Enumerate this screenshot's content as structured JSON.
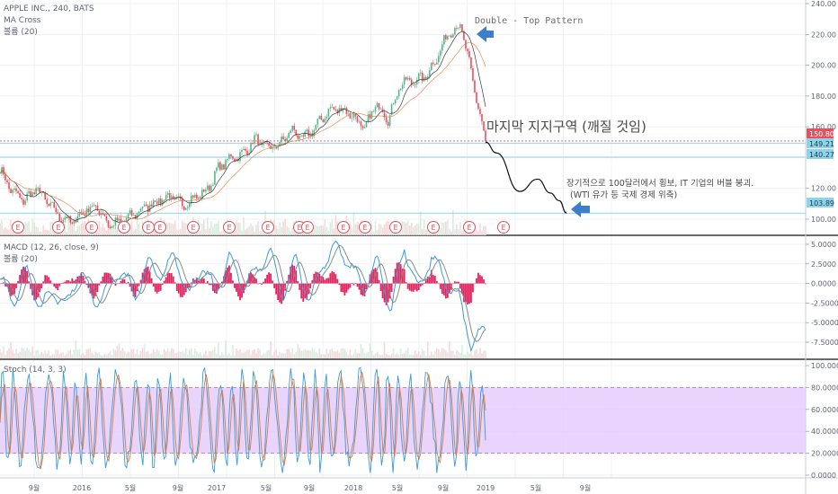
{
  "panel1": {
    "title": "APPLE INC., 240, BATS",
    "indicator1": "MA Cross",
    "indicator2": "볼륨 (20)",
    "y_ticks": [
      "240.00",
      "220.00",
      "200.00",
      "180.00",
      "160.00",
      "120.00",
      "100.00"
    ],
    "price_tags": [
      {
        "text": "150.80",
        "value": 150.8,
        "color": "#e05260",
        "text_color": "#ffffff"
      },
      {
        "text": "149.21",
        "value": 149.21,
        "color": "#8fd3e8",
        "text_color": "#1a3a4a"
      },
      {
        "text": "140.27",
        "value": 140.27,
        "color": "#8fd3e8",
        "text_color": "#1a3a4a"
      },
      {
        "text": "103.89",
        "value": 103.89,
        "color": "#8fd3e8",
        "text_color": "#1a3a4a"
      }
    ],
    "earnings_marker": "E",
    "annotation_top": "Double - Top Pattern",
    "annotation_support": "마지막 지지구역 (깨질 것임)",
    "annotation_note_line1": "장기적으로 100달러에서 횡보, IT 기업의 버블 붕괴.",
    "annotation_note_line2": "(WTI 유가 등 국제 경제 위축)"
  },
  "panel2": {
    "title": "MACD (12, 26, close, 9)",
    "indicator": "볼륨 (20)",
    "y_ticks": [
      "5.0000",
      "2.5000",
      "0.0000",
      "-2.5000",
      "-5.0000",
      "-7.5000"
    ]
  },
  "panel3": {
    "title": "Stoch (14, 3, 3)",
    "y_ticks": [
      "100.0000",
      "80.0000",
      "60.0000",
      "40.0000",
      "20.0000",
      "0.0000"
    ]
  },
  "x_axis": {
    "ticks": [
      "9월",
      "2016",
      "5월",
      "9월",
      "2017",
      "5월",
      "9월",
      "2018",
      "5월",
      "9월",
      "2019",
      "5월",
      "9월"
    ]
  },
  "colors": {
    "up": "#53b987",
    "down": "#eb4d5c",
    "price_line": "#1f2633",
    "macd_line": "#3a9bd9",
    "signal_line": "#8a8a8a",
    "hist": "#e0245e",
    "stoch_k": "#3a9bd9",
    "stoch_d": "#e07a3a",
    "stoch_band": "#e4cdfc",
    "arrow": "#3d7dca",
    "support_line": "#e05260",
    "level_line": "#8fd3e8"
  },
  "chart_data": [
    {
      "type": "line",
      "title": "APPLE INC., 240, BATS",
      "ylim": [
        95,
        242
      ],
      "series": [
        {
          "name": "",
          "x": [
            "2015-08",
            "2015-09",
            "2015-10",
            "2015-11",
            "2015-12",
            "2016-01",
            "2016-02",
            "2016-03",
            "2016-04",
            "2016-05",
            "2016-06",
            "2016-07",
            "2016-08",
            "2016-09",
            "2016-10",
            "2016-11",
            "2016-12",
            "2017-01",
            "2017-02",
            "2017-03",
            "2017-04",
            "2017-05",
            "2017-06",
            "2017-07",
            "2017-08",
            "2017-09",
            "2017-10",
            "2017-11",
            "2017-12",
            "2018-01",
            "2018-02",
            "2018-03",
            "2018-04",
            "2018-05",
            "2018-06",
            "2018-07",
            "2018-08",
            "2018-09",
            "2018-10",
            "2018-11",
            "2018-12"
          ],
          "values": [
            132,
            118,
            112,
            120,
            110,
            101,
            98,
            106,
            108,
            96,
            98,
            103,
            108,
            112,
            115,
            109,
            114,
            118,
            133,
            140,
            142,
            152,
            146,
            148,
            158,
            152,
            160,
            170,
            172,
            168,
            158,
            175,
            165,
            188,
            190,
            192,
            205,
            222,
            225,
            188,
            150
          ]
        }
      ],
      "projection": {
        "x": [
          "2018-12",
          "2019-01",
          "2019-02",
          "2019-03",
          "2019-04",
          "2019-05",
          "2019-06"
        ],
        "values": [
          150,
          143,
          118,
          126,
          117,
          112,
          104
        ]
      },
      "levels": [
        150.8,
        149.21,
        140.27,
        103.89
      ]
    },
    {
      "type": "line",
      "title": "MACD (12, 26, close, 9)",
      "ylim": [
        -8.5,
        5.5
      ],
      "series": [
        {
          "name": "",
          "values": [
            0.5,
            -2.2,
            1.6,
            -3.0,
            -1.0,
            -2.8,
            2.0,
            -2.6,
            -0.5,
            1.8,
            -1.6,
            2.5,
            1.2,
            3.5,
            -1.8,
            2.6,
            -1.4,
            3.4,
            -0.4,
            1.5,
            4.0,
            -1.6,
            3.2,
            -2.6,
            2.8,
            4.8,
            2.2,
            -0.8,
            3.0,
            -3.6,
            4.8,
            -1.2,
            3.6,
            0.3,
            -1.8,
            -8.0,
            -5.5
          ]
        }
      ]
    },
    {
      "type": "line",
      "title": "Stoch (14, 3, 3)",
      "ylim": [
        0,
        100
      ],
      "bands": [
        20,
        80
      ]
    }
  ]
}
